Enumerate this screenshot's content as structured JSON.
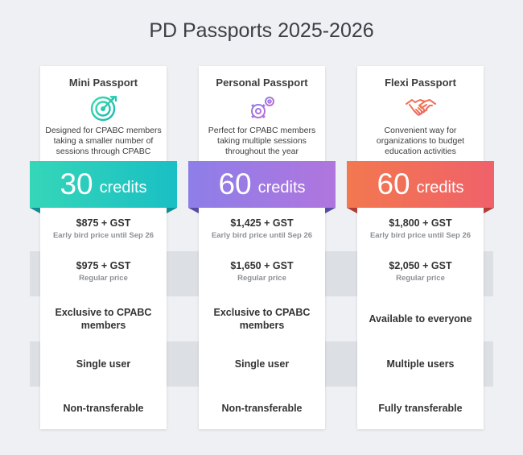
{
  "title": "PD Passports 2025-2026",
  "credits_unit": "credits",
  "plans": [
    {
      "name": "Mini Passport",
      "icon": "target-icon",
      "description": "Designed for CPABC members taking a smaller number of sessions through CPABC",
      "credits": "30",
      "early_price": "$875 + GST",
      "early_label": "Early bird price until Sep 26",
      "regular_price": "$975 + GST",
      "regular_label": "Regular price",
      "eligibility": "Exclusive to CPABC members",
      "users": "Single user",
      "transfer": "Non-transferable",
      "colors": {
        "start": "#35d6b8",
        "end": "#19bfc4",
        "fold": "#0f8f8f"
      }
    },
    {
      "name": "Personal Passport",
      "icon": "gears-icon",
      "description": "Perfect for CPABC members taking multiple sessions throughout the year",
      "credits": "60",
      "early_price": "$1,425 + GST",
      "early_label": "Early bird price until Sep 26",
      "regular_price": "$1,650 + GST",
      "regular_label": "Regular price",
      "eligibility": "Exclusive to CPABC members",
      "users": "Single user",
      "transfer": "Non-transferable",
      "colors": {
        "start": "#8e7ee8",
        "end": "#b075de",
        "fold": "#5a4aa8"
      }
    },
    {
      "name": "Flexi Passport",
      "icon": "handshake-icon",
      "description": "Convenient way for organizations to budget education activities",
      "credits": "60",
      "early_price": "$1,800 + GST",
      "early_label": "Early bird price until Sep 26",
      "regular_price": "$2,050 + GST",
      "regular_label": "Regular price",
      "eligibility": "Available to everyone",
      "users": "Multiple users",
      "transfer": "Fully transferable",
      "colors": {
        "start": "#f2784f",
        "end": "#f0616a",
        "fold": "#b23c36"
      }
    }
  ]
}
